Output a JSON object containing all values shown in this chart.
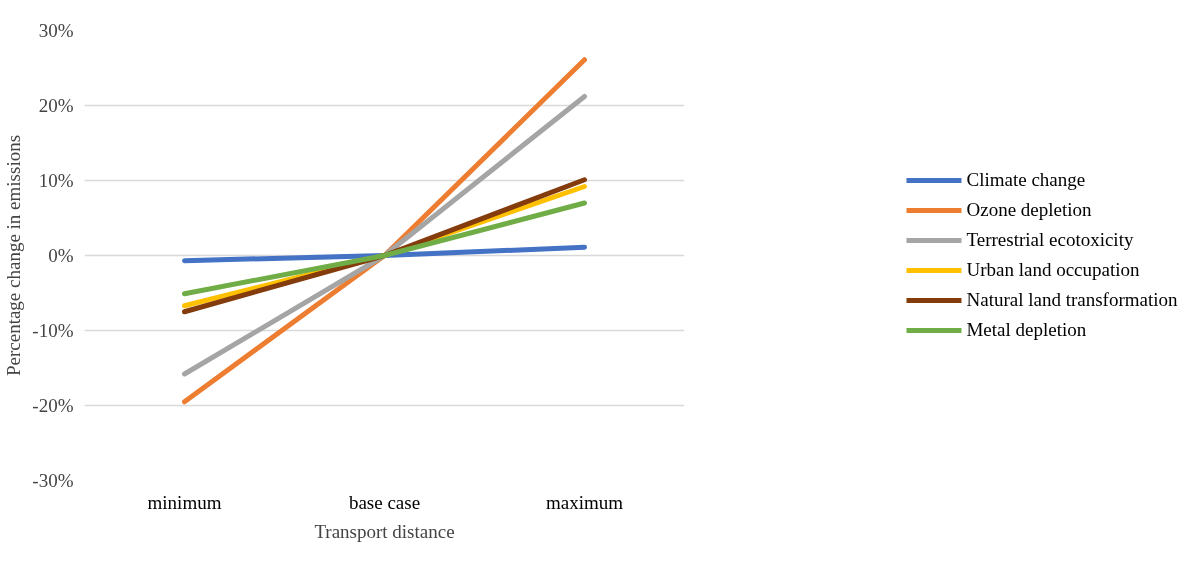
{
  "chart_data": {
    "type": "line",
    "xlabel": "Transport distance",
    "ylabel": "Percentage change in emissions",
    "categories": [
      "minimum",
      "base case",
      "maximum"
    ],
    "series": [
      {
        "name": "Climate change",
        "color": "#4472c4",
        "values": [
          -0.7,
          0,
          1.1
        ]
      },
      {
        "name": "Ozone depletion",
        "color": "#ed7d31",
        "values": [
          -19.5,
          0,
          26.1
        ]
      },
      {
        "name": "Terrestrial ecotoxicity",
        "color": "#a5a5a5",
        "values": [
          -15.8,
          0,
          21.2
        ]
      },
      {
        "name": "Urban land occupation",
        "color": "#ffc000",
        "values": [
          -6.7,
          0,
          9.2
        ]
      },
      {
        "name": "Natural land transformation",
        "color": "#843c0c",
        "values": [
          -7.5,
          0,
          10.1
        ]
      },
      {
        "name": "Metal depletion",
        "color": "#70ad47",
        "values": [
          -5.1,
          0,
          7.0
        ]
      }
    ],
    "ylim": [
      -30,
      30
    ],
    "yticks": [
      {
        "value": -30,
        "label": "-30%"
      },
      {
        "value": -20,
        "label": "-20%"
      },
      {
        "value": -10,
        "label": "-10%"
      },
      {
        "value": 0,
        "label": "0%"
      },
      {
        "value": 10,
        "label": "10%"
      },
      {
        "value": 20,
        "label": "20%"
      },
      {
        "value": 30,
        "label": "30%"
      }
    ],
    "grid": "y",
    "legend": "right",
    "marker": "none",
    "line_style": "solid"
  }
}
